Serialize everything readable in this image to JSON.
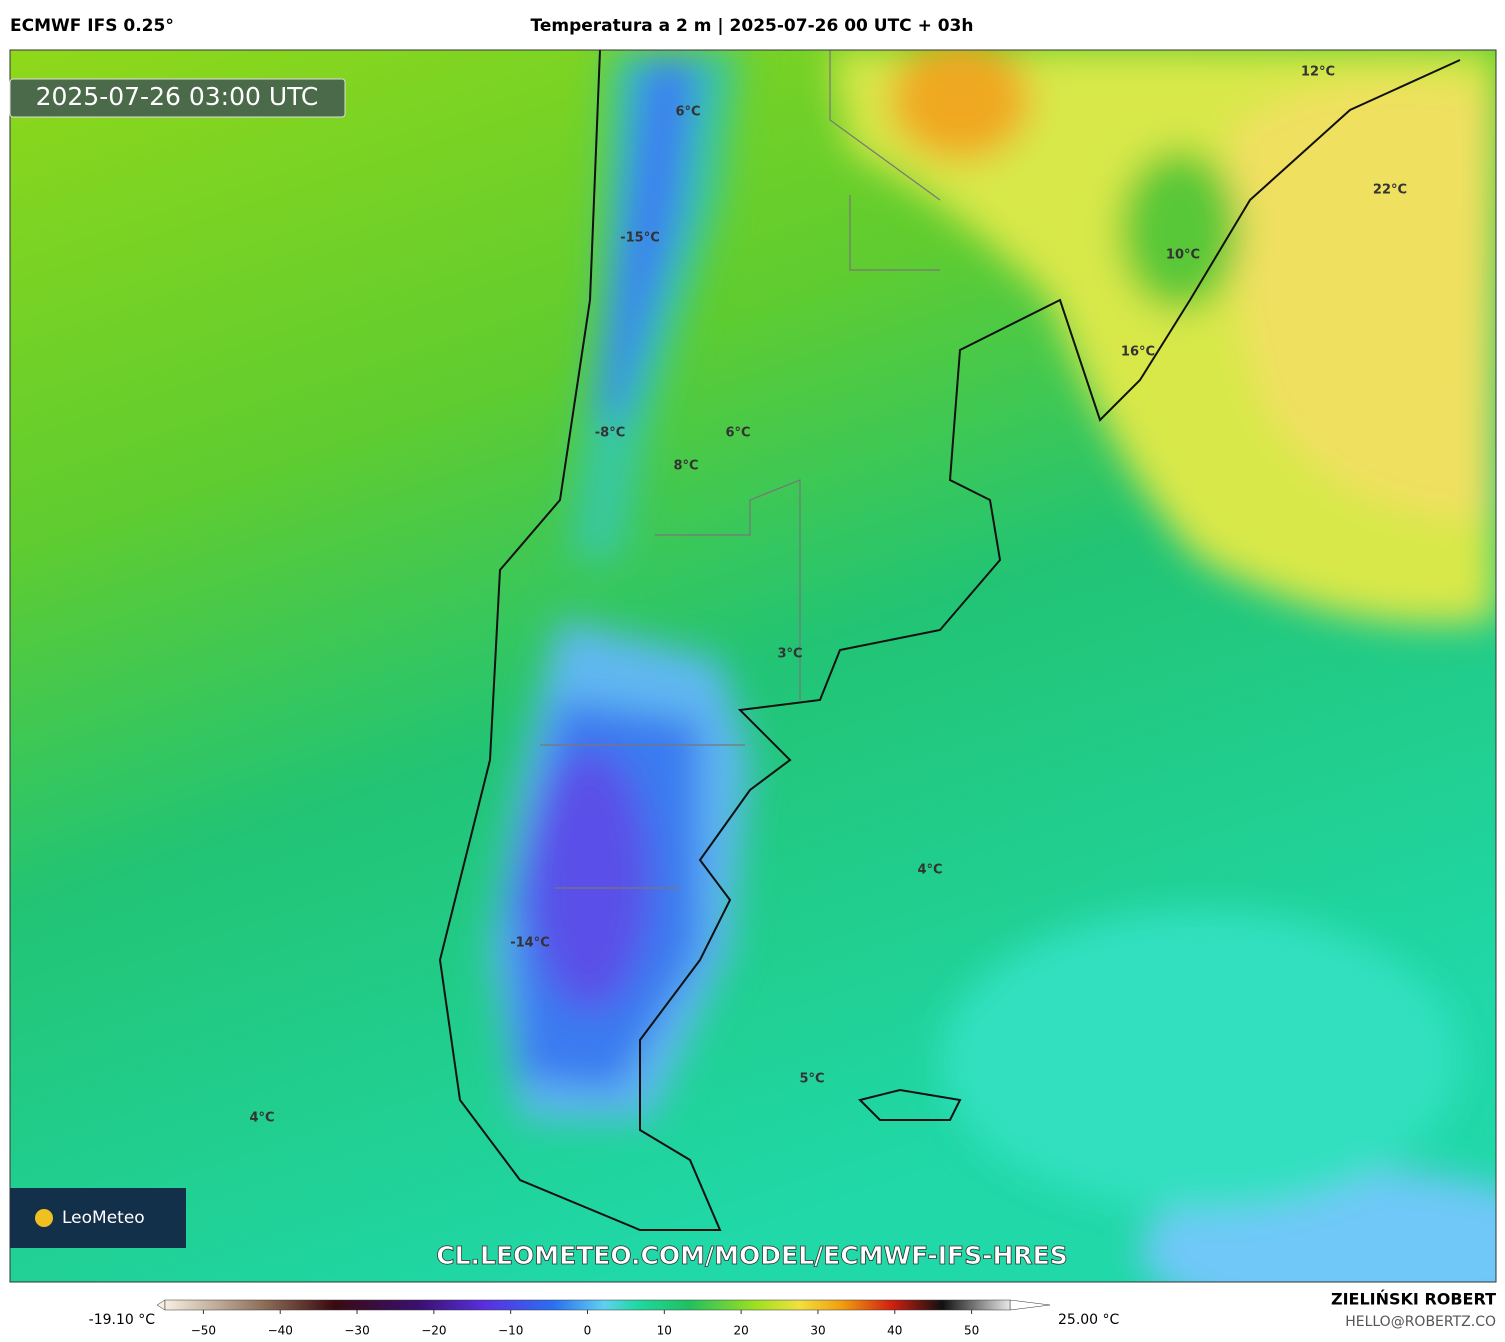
{
  "header": {
    "model": "ECMWF IFS 0.25°",
    "title": "Temperatura a 2 m | 2025-07-26 00 UTC + 03h"
  },
  "timestamp": "2025-07-26 03:00 UTC",
  "map_labels": [
    "12°C",
    "22°C",
    "6°C",
    "-15°C",
    "10°C",
    "16°C",
    "-8°C",
    "6°C",
    "8°C",
    "3°C",
    "4°C",
    "-14°C",
    "5°C",
    "4°C"
  ],
  "logo": "LeoMeteo",
  "url": "CL.LEOMETEO.COM/MODEL/ECMWF-IFS-HRES",
  "colorbar": {
    "min_label": "-19.10 °C",
    "max_label": "25.00 °C",
    "xlim": [
      -55,
      55
    ],
    "xticks": [
      {
        "value": -50,
        "label": "−50"
      },
      {
        "value": -40,
        "label": "−40"
      },
      {
        "value": -30,
        "label": "−30"
      },
      {
        "value": -20,
        "label": "−20"
      },
      {
        "value": -10,
        "label": "−10"
      },
      0,
      10,
      20,
      30,
      40,
      50
    ]
  },
  "credit": {
    "author": "ZIELIŃSKI ROBERT",
    "email": "HELLO@ROBERTZ.CO"
  }
}
